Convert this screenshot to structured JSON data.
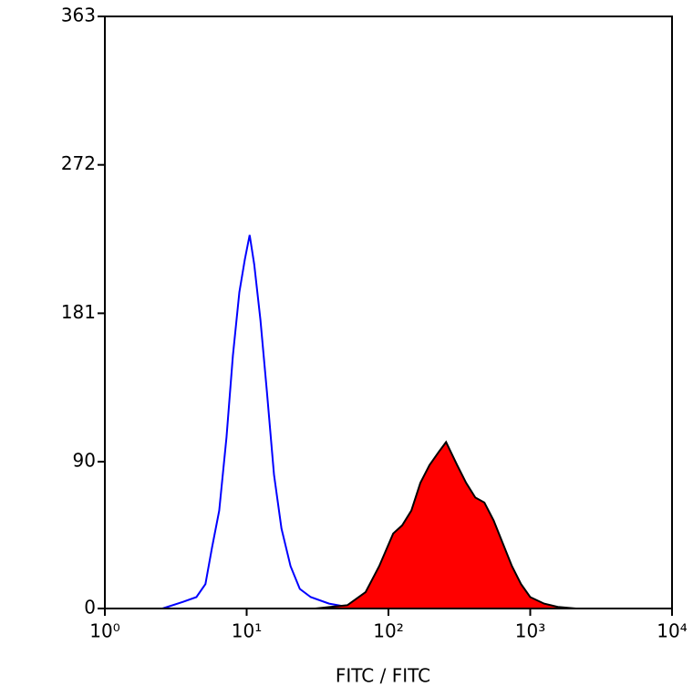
{
  "chart_data": {
    "type": "histogram-overlay",
    "xlabel": "FITC / FITC",
    "xscale": "log",
    "xlim": [
      1,
      10000
    ],
    "xticks": [
      {
        "value": 1,
        "label": "10⁰"
      },
      {
        "value": 10,
        "label": "10¹"
      },
      {
        "value": 100,
        "label": "10²"
      },
      {
        "value": 1000,
        "label": "10³"
      },
      {
        "value": 10000,
        "label": "10⁴"
      }
    ],
    "ylim": [
      0,
      363
    ],
    "yticks": [
      0,
      90,
      181,
      272,
      363
    ],
    "series": [
      {
        "color": "#0000ff",
        "filled": false,
        "x": [
          2.55,
          3.54,
          4.42,
          5.12,
          5.69,
          6.4,
          7.21,
          8.0,
          8.88,
          9.71,
          10.5,
          11.3,
          12.5,
          13.9,
          15.6,
          17.6,
          20.4,
          23.7,
          28.3,
          38.1,
          51.3,
          69
        ],
        "values": [
          0,
          4,
          7,
          15,
          37,
          60,
          105,
          155,
          194,
          214,
          229,
          211,
          177,
          133,
          82,
          49,
          26,
          12,
          7,
          3,
          1,
          0
        ]
      },
      {
        "color": "#ff0000",
        "edgecolor": "#000000",
        "filled": true,
        "x": [
          30.5,
          51.3,
          69,
          86.1,
          108,
          125,
          145,
          168,
          195,
          226,
          255,
          305,
          353,
          410,
          475,
          552,
          640,
          743,
          861,
          1000,
          1250,
          1563,
          2100
        ],
        "values": [
          0,
          2,
          10,
          26,
          46,
          51,
          60,
          77,
          88,
          96,
          102,
          88,
          77,
          68,
          65,
          54,
          40,
          26,
          15,
          7,
          3,
          1,
          0
        ]
      }
    ]
  }
}
